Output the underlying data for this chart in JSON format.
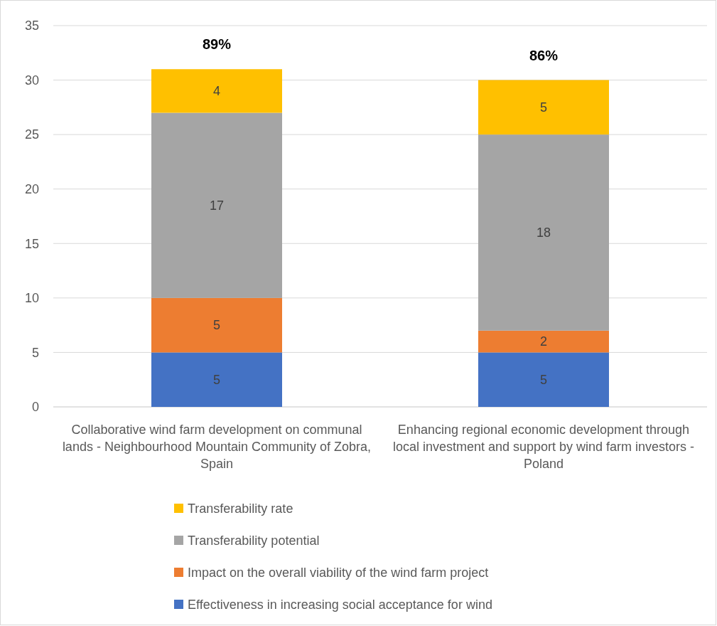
{
  "chart_data": {
    "type": "bar",
    "stacked": true,
    "categories": [
      "Collaborative wind farm development on communal lands - Neighbourhood Mountain Community of Zobra, Spain",
      "Enhancing regional economic development through local investment and support by wind farm investors - Poland"
    ],
    "series": [
      {
        "name": "Effectiveness in increasing social acceptance for wind",
        "color": "#4472c4",
        "values": [
          5,
          5
        ]
      },
      {
        "name": "Impact on the overall viability of the wind farm project",
        "color": "#ed7d31",
        "values": [
          5,
          2
        ]
      },
      {
        "name": "Transferability potential",
        "color": "#a5a5a5",
        "values": [
          17,
          18
        ]
      },
      {
        "name": "Transferability rate",
        "color": "#ffc000",
        "values": [
          4,
          5
        ]
      }
    ],
    "ylim": [
      0,
      35
    ],
    "yticks": [
      0,
      5,
      10,
      15,
      20,
      25,
      30,
      35
    ],
    "grid": "y",
    "data_labels": true,
    "annotations": [
      {
        "text": "89%",
        "x": "Collaborative wind farm development on communal lands - Neighbourhood Mountain Community of Zobra, Spain",
        "y": 31
      },
      {
        "text": "86%",
        "x": "Enhancing regional economic development through local investment and support by wind farm investors - Poland",
        "y": 30
      }
    ],
    "legend": "bottom"
  }
}
